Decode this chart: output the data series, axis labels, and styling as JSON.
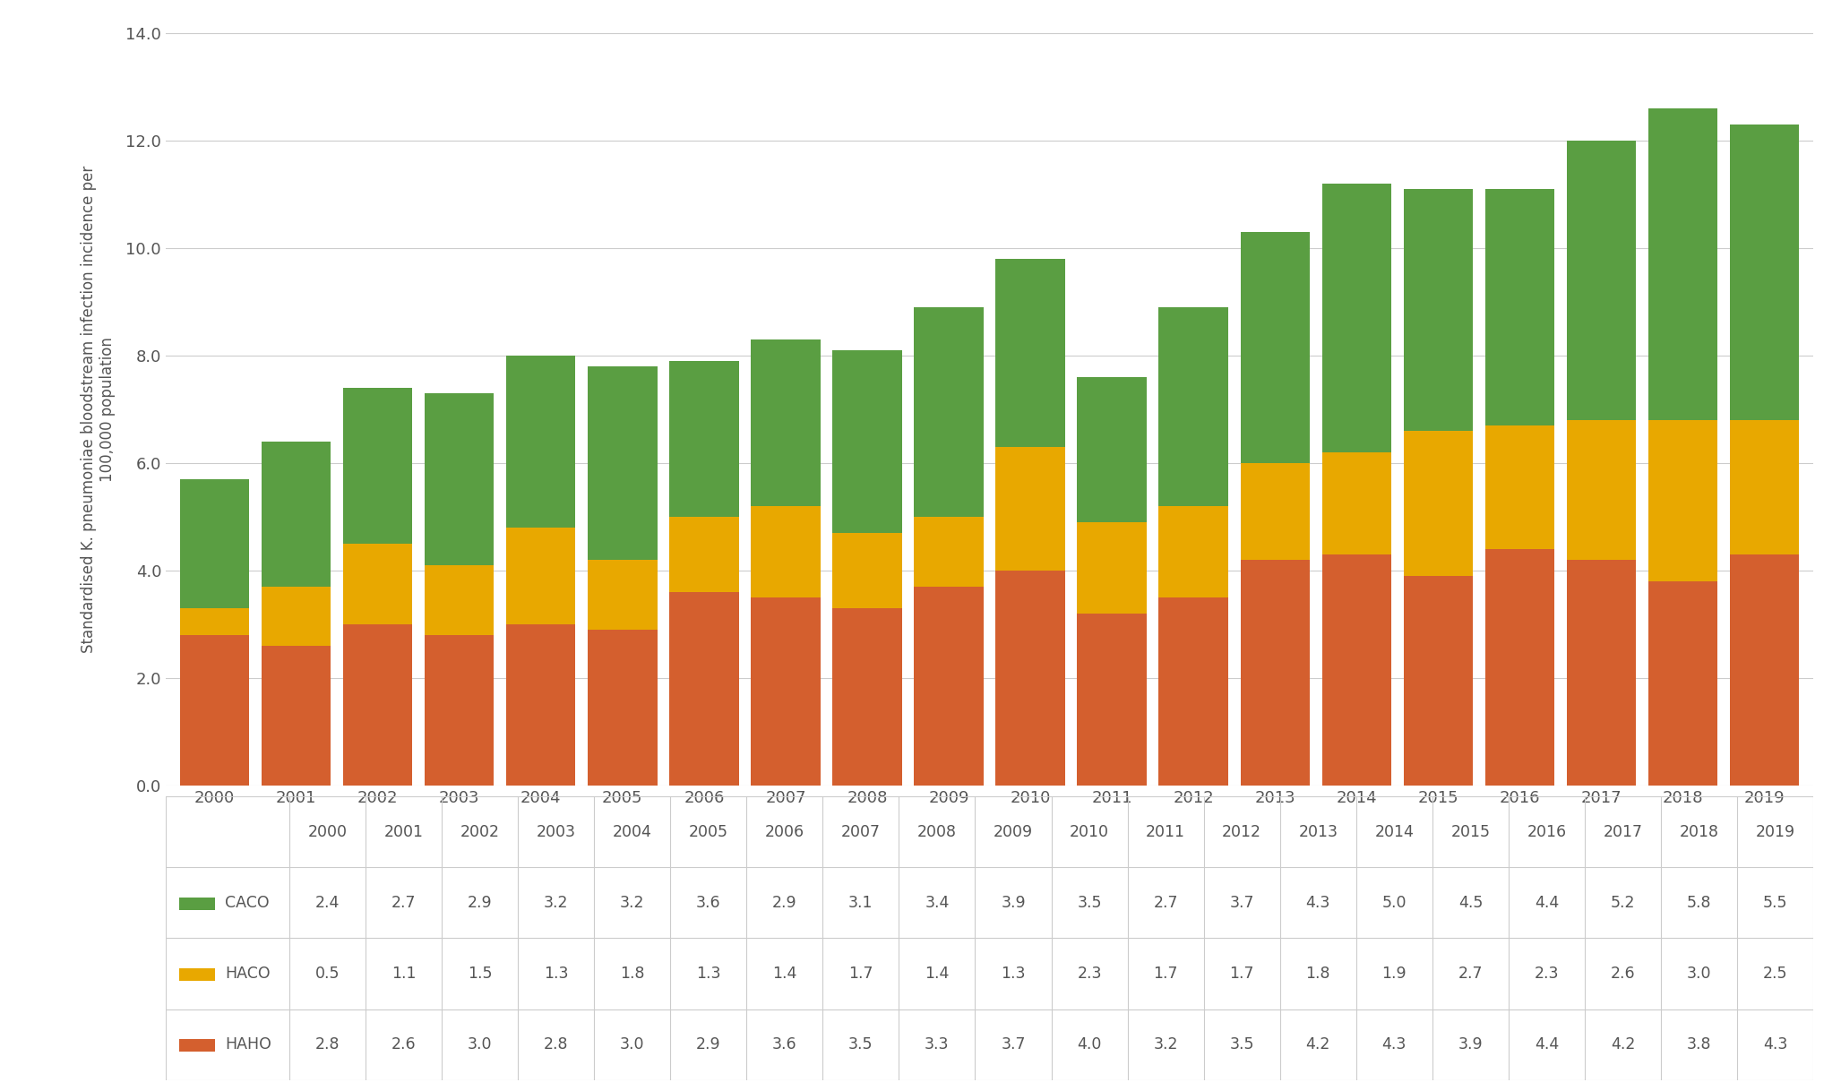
{
  "years": [
    2000,
    2001,
    2002,
    2003,
    2004,
    2005,
    2006,
    2007,
    2008,
    2009,
    2010,
    2011,
    2012,
    2013,
    2014,
    2015,
    2016,
    2017,
    2018,
    2019
  ],
  "CACO": [
    2.4,
    2.7,
    2.9,
    3.2,
    3.2,
    3.6,
    2.9,
    3.1,
    3.4,
    3.9,
    3.5,
    2.7,
    3.7,
    4.3,
    5.0,
    4.5,
    4.4,
    5.2,
    5.8,
    5.5
  ],
  "HACO": [
    0.5,
    1.1,
    1.5,
    1.3,
    1.8,
    1.3,
    1.4,
    1.7,
    1.4,
    1.3,
    2.3,
    1.7,
    1.7,
    1.8,
    1.9,
    2.7,
    2.3,
    2.6,
    3.0,
    2.5
  ],
  "HAHO": [
    2.8,
    2.6,
    3.0,
    2.8,
    3.0,
    2.9,
    3.6,
    3.5,
    3.3,
    3.7,
    4.0,
    3.2,
    3.5,
    4.2,
    4.3,
    3.9,
    4.4,
    4.2,
    3.8,
    4.3
  ],
  "caco_color": "#5a9e42",
  "haco_color": "#e8a800",
  "haho_color": "#d45f2e",
  "ylabel": "Standardised K. pneumoniae bloodstream infection incidence per\n100,000 population",
  "ylim": [
    0,
    14.0
  ],
  "yticks": [
    0.0,
    2.0,
    4.0,
    6.0,
    8.0,
    10.0,
    12.0,
    14.0
  ],
  "background_color": "#ffffff",
  "grid_color": "#cccccc",
  "bar_width": 0.85,
  "table_row_labels": [
    "CACO",
    "HACO",
    "HAHO"
  ],
  "table_border_color": "#cccccc",
  "text_color": "#555555"
}
